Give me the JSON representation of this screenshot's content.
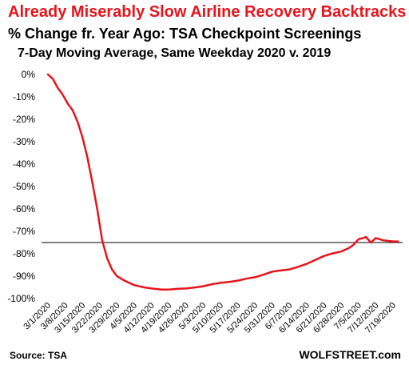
{
  "chart_data": {
    "type": "line",
    "title": "Already Miserably Slow Airline Recovery Backtracks",
    "subtitle": "% Change fr. Year Ago: TSA Checkpoint Screenings",
    "subtitle2": "7-Day Moving Average, Same Weekday 2020 v. 2019",
    "xlabel": "",
    "ylabel": "",
    "ylim": [
      -100,
      0
    ],
    "yticks": [
      0,
      -10,
      -20,
      -30,
      -40,
      -50,
      -60,
      -70,
      -80,
      -90,
      -100
    ],
    "ytick_labels": [
      "0%",
      "-10%",
      "-20%",
      "-30%",
      "-40%",
      "-50%",
      "-60%",
      "-70%",
      "-80%",
      "-90%",
      "-100%"
    ],
    "xtick_labels": [
      "3/1/2020",
      "3/8/2020",
      "3/15/2020",
      "3/22/2020",
      "3/29/2020",
      "4/5/2020",
      "4/12/2020",
      "4/19/2020",
      "4/26/2020",
      "5/3/2020",
      "5/10/2020",
      "5/17/2020",
      "5/24/2020",
      "5/31/2020",
      "6/7/2020",
      "6/14/2020",
      "6/21/2020",
      "6/28/2020",
      "7/5/2020",
      "7/12/2020",
      "7/19/2020"
    ],
    "reference_line": -75,
    "grid": false,
    "line_color": "#e8141c",
    "reference_color": "#000000",
    "series": [
      {
        "x": [
          "3/1/2020",
          "3/3/2020",
          "3/5/2020",
          "3/7/2020",
          "3/9/2020",
          "3/11/2020",
          "3/13/2020",
          "3/15/2020",
          "3/17/2020",
          "3/19/2020",
          "3/21/2020",
          "3/23/2020",
          "3/25/2020",
          "3/27/2020",
          "3/29/2020",
          "4/1/2020",
          "4/5/2020",
          "4/9/2020",
          "4/12/2020",
          "4/16/2020",
          "4/19/2020",
          "4/23/2020",
          "4/26/2020",
          "4/30/2020",
          "5/3/2020",
          "5/7/2020",
          "5/10/2020",
          "5/14/2020",
          "5/17/2020",
          "5/21/2020",
          "5/24/2020",
          "5/27/2020",
          "5/31/2020",
          "6/3/2020",
          "6/7/2020",
          "6/10/2020",
          "6/14/2020",
          "6/17/2020",
          "6/21/2020",
          "6/24/2020",
          "6/28/2020",
          "7/1/2020",
          "7/3/2020",
          "7/5/2020",
          "7/7/2020",
          "7/8/2020",
          "7/10/2020",
          "7/12/2020",
          "7/15/2020",
          "7/19/2020",
          "7/21/2020"
        ],
        "values": [
          0,
          -2,
          -6,
          -9,
          -13,
          -16,
          -21,
          -28,
          -37,
          -48,
          -60,
          -74,
          -82,
          -87,
          -90,
          -92,
          -94,
          -95,
          -95.5,
          -96,
          -96,
          -95.6,
          -95.5,
          -95,
          -94.5,
          -93.5,
          -93,
          -92.5,
          -92,
          -91,
          -90.5,
          -89.5,
          -88,
          -87.5,
          -87,
          -86,
          -84.5,
          -83,
          -81,
          -80,
          -79,
          -77.5,
          -76,
          -73.5,
          -73,
          -72.5,
          -75,
          -73,
          -74,
          -74.5,
          -74.5
        ]
      }
    ]
  },
  "footer": {
    "source": "Source: TSA",
    "credit": "WOLFSTREET.com"
  }
}
